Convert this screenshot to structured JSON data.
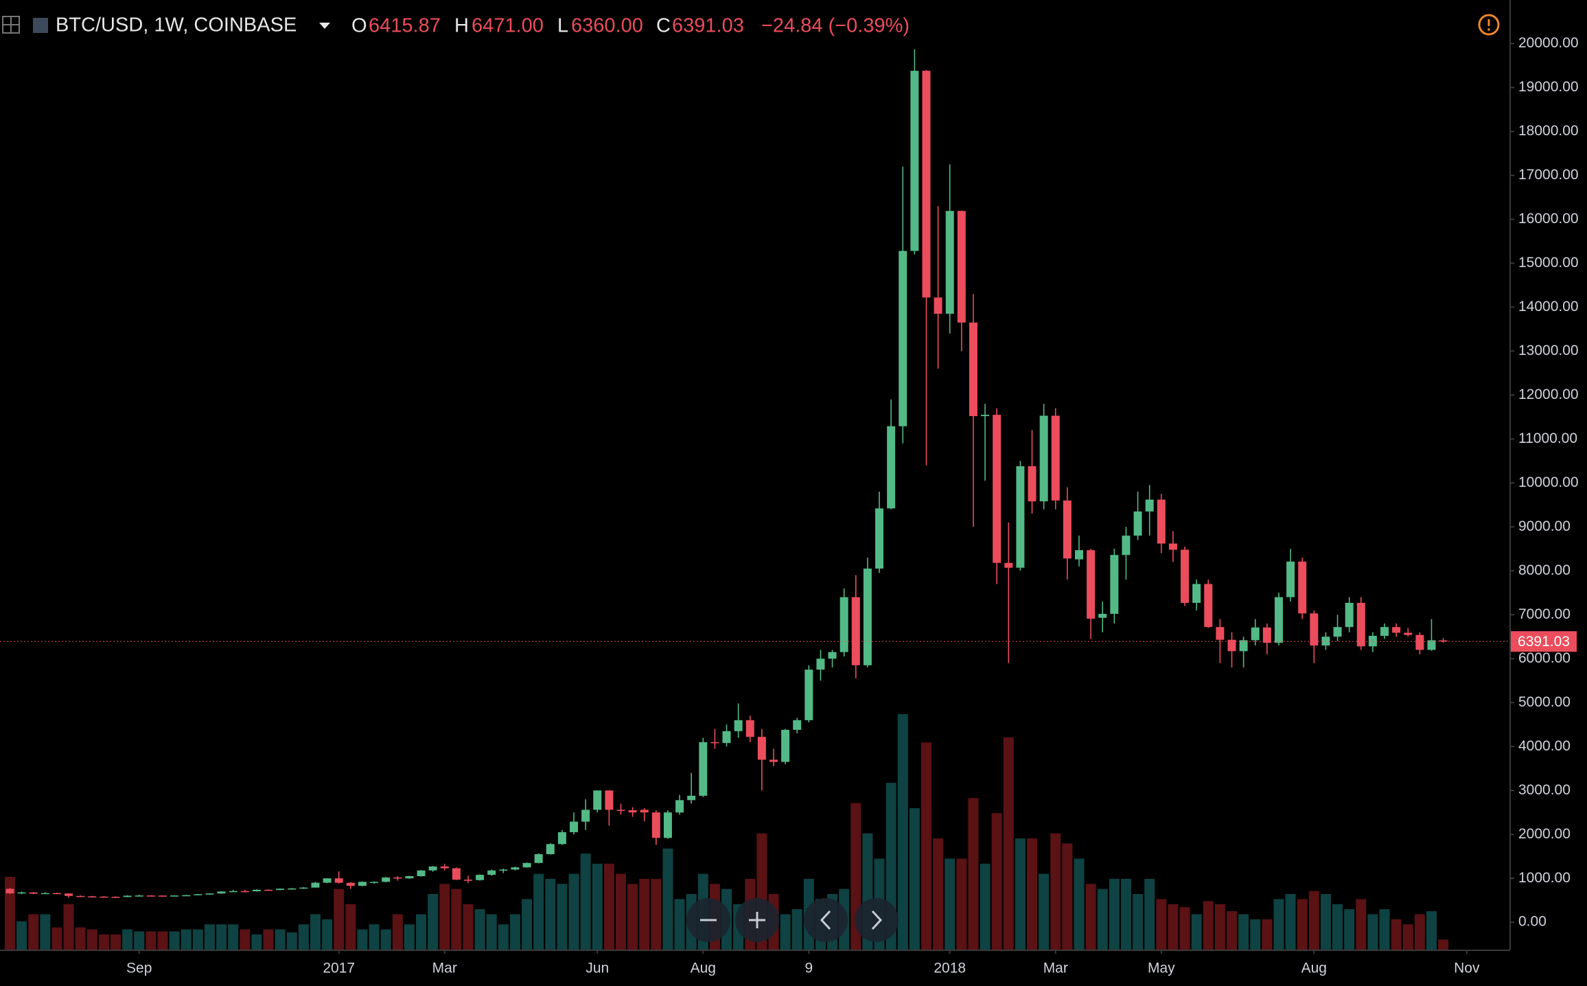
{
  "header": {
    "symbol": "BTC/USD, 1W, COINBASE",
    "open_label": "O",
    "open": "6415.87",
    "high_label": "H",
    "high": "6471.00",
    "low_label": "L",
    "low": "6360.00",
    "close_label": "C",
    "close": "6391.03",
    "change": "−24.84 (−0.39%)"
  },
  "chart_data": {
    "type": "candlestick",
    "categories": [
      null,
      null,
      null,
      null,
      null,
      null,
      null,
      null,
      null,
      null,
      null,
      "Sep",
      null,
      null,
      null,
      null,
      null,
      null,
      null,
      null,
      null,
      null,
      null,
      null,
      null,
      null,
      null,
      null,
      "2017",
      null,
      null,
      null,
      null,
      null,
      null,
      null,
      null,
      "Mar",
      null,
      null,
      null,
      null,
      null,
      null,
      null,
      null,
      null,
      null,
      null,
      null,
      "Jun",
      null,
      null,
      null,
      null,
      null,
      null,
      null,
      null,
      "Aug",
      null,
      null,
      null,
      null,
      null,
      null,
      null,
      null,
      "9",
      null,
      null,
      null,
      null,
      null,
      null,
      null,
      null,
      null,
      null,
      null,
      "2018",
      null,
      null,
      null,
      null,
      null,
      null,
      null,
      null,
      "Mar",
      null,
      null,
      null,
      null,
      null,
      null,
      null,
      null,
      "May",
      null,
      null,
      null,
      null,
      null,
      null,
      null,
      null,
      null,
      null,
      null,
      null,
      "Aug",
      null,
      null,
      null,
      null,
      null,
      null,
      null,
      null,
      null,
      null,
      null,
      null,
      "Nov"
    ],
    "open": [
      760,
      660,
      680,
      650,
      665,
      655,
      600,
      590,
      585,
      580,
      575,
      605,
      610,
      608,
      605,
      610,
      618,
      640,
      655,
      700,
      710,
      705,
      740,
      735,
      765,
      770,
      790,
      900,
      1000,
      900,
      830,
      920,
      920,
      1020,
      1000,
      1050,
      1180,
      1270,
      1230,
      970,
      960,
      1080,
      1180,
      1200,
      1250,
      1350,
      1550,
      1780,
      2050,
      2290,
      2560,
      3000,
      2560,
      2550,
      2560,
      2500,
      1920,
      2500,
      2780,
      2880,
      4100,
      4080,
      4350,
      4600,
      4220,
      3700,
      3650,
      4380,
      4600,
      5750,
      6000,
      6150,
      7400,
      5850,
      8050,
      9420,
      11290,
      15280,
      19380,
      14220,
      13850,
      16190,
      13650,
      11520,
      11550,
      8180,
      8070,
      10380,
      9580,
      11530,
      9600,
      8260,
      8470,
      6930,
      7020,
      8360,
      8800,
      9350,
      9620,
      8620,
      8480,
      7270,
      7700,
      6720,
      6430,
      6170,
      6420,
      6710,
      6360,
      7400,
      8210,
      7030,
      6300,
      6500,
      6720,
      7270,
      6280,
      6520,
      6720,
      6590,
      6540,
      6200,
      6415.87,
      null,
      null
    ],
    "high": [
      780,
      700,
      690,
      680,
      675,
      660,
      610,
      600,
      595,
      590,
      615,
      630,
      615,
      612,
      615,
      625,
      645,
      660,
      710,
      740,
      740,
      750,
      750,
      770,
      780,
      800,
      920,
      1000,
      1160,
      910,
      930,
      930,
      1030,
      1050,
      1060,
      1190,
      1280,
      1330,
      1250,
      1060,
      1090,
      1200,
      1220,
      1270,
      1360,
      1570,
      1800,
      2100,
      2500,
      2800,
      3000,
      3000,
      2700,
      2620,
      2600,
      2550,
      2550,
      2900,
      3400,
      4200,
      4400,
      4500,
      4980,
      4700,
      4400,
      3950,
      4400,
      4650,
      5850,
      6200,
      6200,
      7600,
      7900,
      8300,
      9800,
      11900,
      17200,
      19870,
      19400,
      16300,
      17250,
      16200,
      14300,
      11800,
      11700,
      9100,
      10500,
      11200,
      11800,
      11700,
      9900,
      8800,
      8500,
      7300,
      8500,
      9000,
      9800,
      9950,
      9750,
      8900,
      8550,
      7800,
      7800,
      6900,
      6600,
      6500,
      6900,
      6800,
      7500,
      8500,
      8300,
      7100,
      6600,
      7000,
      7400,
      7400,
      6600,
      6800,
      6800,
      6700,
      6600,
      6900,
      6471,
      null,
      null
    ],
    "low": [
      640,
      640,
      640,
      645,
      645,
      560,
      575,
      575,
      565,
      565,
      570,
      600,
      595,
      598,
      600,
      605,
      615,
      630,
      650,
      690,
      680,
      700,
      720,
      730,
      750,
      760,
      785,
      890,
      880,
      760,
      820,
      880,
      910,
      950,
      990,
      1040,
      1150,
      1180,
      960,
      890,
      950,
      1060,
      1120,
      1180,
      1240,
      1340,
      1540,
      1760,
      2000,
      2100,
      2500,
      2200,
      2450,
      2400,
      2300,
      1760,
      1900,
      2450,
      2700,
      2850,
      3950,
      4000,
      4200,
      4100,
      3000,
      3550,
      3600,
      4300,
      4550,
      5500,
      5800,
      6050,
      5550,
      5800,
      7950,
      9400,
      10900,
      15200,
      10400,
      12600,
      13400,
      13000,
      9000,
      10050,
      7700,
      5900,
      8000,
      9300,
      9400,
      9400,
      7800,
      8100,
      6450,
      6600,
      6800,
      7800,
      8700,
      8800,
      8400,
      8200,
      7200,
      7100,
      6700,
      5900,
      5800,
      5800,
      6300,
      6100,
      6300,
      7300,
      6900,
      5900,
      6200,
      6400,
      6600,
      6200,
      6150,
      6450,
      6500,
      6500,
      6100,
      6180,
      6360,
      null,
      null
    ],
    "close": [
      660,
      680,
      650,
      665,
      655,
      600,
      590,
      585,
      580,
      575,
      605,
      610,
      608,
      605,
      610,
      618,
      640,
      655,
      700,
      710,
      705,
      740,
      735,
      765,
      770,
      790,
      900,
      1000,
      900,
      830,
      920,
      920,
      1020,
      1000,
      1050,
      1180,
      1270,
      1230,
      970,
      960,
      1080,
      1180,
      1200,
      1250,
      1350,
      1550,
      1780,
      2050,
      2290,
      2560,
      3000,
      2560,
      2550,
      2500,
      2500,
      1920,
      2500,
      2780,
      2880,
      4100,
      4080,
      4350,
      4600,
      4220,
      3700,
      3650,
      4380,
      4600,
      5750,
      6000,
      6150,
      7400,
      5850,
      8050,
      9420,
      11290,
      15280,
      19380,
      14220,
      13850,
      16190,
      13650,
      11520,
      11550,
      8180,
      8070,
      10380,
      9580,
      11530,
      9600,
      8280,
      8470,
      6910,
      7020,
      8360,
      8800,
      9350,
      9620,
      8620,
      8480,
      7270,
      7700,
      6720,
      6430,
      6170,
      6420,
      6710,
      6360,
      7400,
      8210,
      7030,
      6300,
      6500,
      6720,
      7270,
      6280,
      6520,
      6720,
      6590,
      6540,
      6200,
      6420,
      6391.03,
      null,
      null
    ],
    "volume": [
      72,
      28,
      35,
      35,
      22,
      45,
      22,
      20,
      15,
      15,
      20,
      18,
      18,
      18,
      18,
      20,
      20,
      25,
      25,
      25,
      20,
      15,
      20,
      20,
      17,
      25,
      35,
      30,
      60,
      45,
      20,
      25,
      20,
      35,
      25,
      35,
      55,
      65,
      60,
      45,
      40,
      35,
      25,
      35,
      50,
      75,
      70,
      65,
      75,
      95,
      85,
      85,
      75,
      65,
      70,
      70,
      100,
      50,
      55,
      75,
      65,
      60,
      45,
      70,
      115,
      55,
      35,
      40,
      70,
      50,
      55,
      60,
      145,
      115,
      90,
      165,
      233,
      140,
      205,
      110,
      90,
      90,
      150,
      85,
      135,
      210,
      110,
      110,
      75,
      115,
      105,
      90,
      65,
      60,
      70,
      70,
      55,
      70,
      50,
      45,
      42,
      35,
      48,
      45,
      38,
      35,
      30,
      30,
      50,
      55,
      50,
      58,
      55,
      45,
      40,
      50,
      35,
      40,
      30,
      25,
      35,
      38,
      10,
      null,
      null
    ],
    "up_color": "#53b987",
    "down_color": "#eb4d5c",
    "volume_up_color": "#0f4243",
    "volume_down_color": "#5a1215",
    "ylim": [
      -622,
      20991
    ],
    "yticks": [
      {
        "value": 0,
        "label": "0.00"
      },
      {
        "value": 1000,
        "label": "1000.00"
      },
      {
        "value": 2000,
        "label": "2000.00"
      },
      {
        "value": 3000,
        "label": "3000.00"
      },
      {
        "value": 4000,
        "label": "4000.00"
      },
      {
        "value": 5000,
        "label": "5000.00"
      },
      {
        "value": 6000,
        "label": "6000.00"
      },
      {
        "value": 7000,
        "label": "7000.00"
      },
      {
        "value": 8000,
        "label": "8000.00"
      },
      {
        "value": 9000,
        "label": "9000.00"
      },
      {
        "value": 10000,
        "label": "10000.00"
      },
      {
        "value": 11000,
        "label": "11000.00"
      },
      {
        "value": 12000,
        "label": "12000.00"
      },
      {
        "value": 13000,
        "label": "13000.00"
      },
      {
        "value": 14000,
        "label": "14000.00"
      },
      {
        "value": 15000,
        "label": "15000.00"
      },
      {
        "value": 16000,
        "label": "16000.00"
      },
      {
        "value": 17000,
        "label": "17000.00"
      },
      {
        "value": 18000,
        "label": "18000.00"
      },
      {
        "value": 19000,
        "label": "19000.00"
      },
      {
        "value": 20000,
        "label": "20000.00"
      }
    ],
    "last_price": {
      "value": 6391.03,
      "label": "6391.03"
    }
  }
}
